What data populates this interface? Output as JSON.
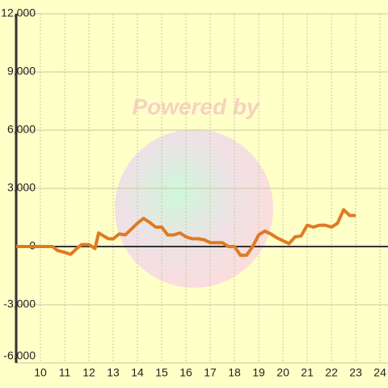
{
  "chart_data": {
    "type": "line",
    "annotation": "Powered by",
    "x": [
      9,
      10.5,
      10.7,
      11,
      11.25,
      11.5,
      11.7,
      12,
      12.25,
      12.4,
      12.8,
      13,
      13.25,
      13.5,
      13.75,
      14,
      14.25,
      14.5,
      14.75,
      15,
      15.25,
      15.5,
      15.75,
      16,
      16.25,
      16.5,
      16.75,
      17,
      17.25,
      17.5,
      17.75,
      18,
      18.25,
      18.5,
      18.75,
      19,
      19.25,
      19.5,
      19.75,
      20,
      20.25,
      20.5,
      20.75,
      21,
      21.25,
      21.5,
      21.75,
      22,
      22.25,
      22.5,
      22.75,
      23
    ],
    "series": [
      {
        "color": "#e07a22",
        "values": [
          0,
          0,
          -200,
          -300,
          -400,
          -100,
          100,
          100,
          -100,
          700,
          400,
          400,
          650,
          600,
          900,
          1200,
          1450,
          1250,
          1000,
          1000,
          600,
          600,
          700,
          500,
          400,
          400,
          350,
          200,
          200,
          200,
          0,
          0,
          -450,
          -450,
          0,
          600,
          800,
          650,
          450,
          300,
          150,
          500,
          550,
          1100,
          1000,
          1100,
          1100,
          1000,
          1200,
          1900,
          1600,
          1600
        ]
      }
    ],
    "xlim": [
      9,
      24.33
    ],
    "xticks": [
      10,
      11,
      12,
      13,
      14,
      15,
      16,
      17,
      18,
      19,
      20,
      21,
      22,
      23,
      24
    ],
    "ylim": [
      -6000,
      12000
    ],
    "yticks": [
      {
        "value": -6000,
        "label": "-6,000"
      },
      {
        "value": -3000,
        "label": "-3,000"
      },
      0,
      {
        "value": 3000,
        "label": "3,000"
      },
      {
        "value": 6000,
        "label": "6,000"
      },
      {
        "value": 9000,
        "label": "9,000"
      },
      {
        "value": 12000,
        "label": "12,000"
      }
    ],
    "grid": true
  }
}
